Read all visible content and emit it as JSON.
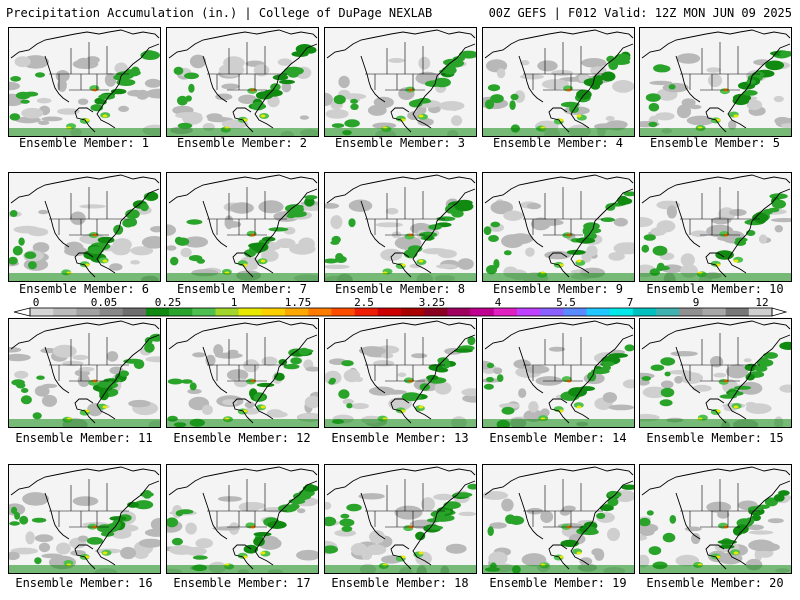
{
  "header": {
    "title": "Precipitation Accumulation (in.) | College of DuPage NEXLAB",
    "run_info": "00Z GEFS | F012 Valid: 12Z MON JUN 09 2025"
  },
  "members": [
    {
      "label": "Ensemble Member: 1"
    },
    {
      "label": "Ensemble Member: 2"
    },
    {
      "label": "Ensemble Member: 3"
    },
    {
      "label": "Ensemble Member: 4"
    },
    {
      "label": "Ensemble Member: 5"
    },
    {
      "label": "Ensemble Member: 6"
    },
    {
      "label": "Ensemble Member: 7"
    },
    {
      "label": "Ensemble Member: 8"
    },
    {
      "label": "Ensemble Member: 9"
    },
    {
      "label": "Ensemble Member: 10"
    },
    {
      "label": "Ensemble Member: 11"
    },
    {
      "label": "Ensemble Member: 12"
    },
    {
      "label": "Ensemble Member: 13"
    },
    {
      "label": "Ensemble Member: 14"
    },
    {
      "label": "Ensemble Member: 15"
    },
    {
      "label": "Ensemble Member: 16"
    },
    {
      "label": "Ensemble Member: 17"
    },
    {
      "label": "Ensemble Member: 18"
    },
    {
      "label": "Ensemble Member: 19"
    },
    {
      "label": "Ensemble Member: 20"
    }
  ],
  "colorbar": {
    "tick_labels": [
      "0",
      "0.05",
      "0.25",
      "1",
      "1.75",
      "2.5",
      "3.25",
      "4",
      "5.5",
      "7",
      "9",
      "12"
    ],
    "colors": [
      "#d6d6d6",
      "#bcbcbc",
      "#a2a2a2",
      "#888888",
      "#6e6e6e",
      "#118a11",
      "#2aa32a",
      "#4fc04f",
      "#a3d62a",
      "#e8e800",
      "#ffd000",
      "#ffa800",
      "#ff7c00",
      "#ff4c00",
      "#ee1c00",
      "#cc0000",
      "#aa0000",
      "#8a0020",
      "#a00060",
      "#c00090",
      "#e020c0",
      "#c040ff",
      "#8a60ff",
      "#5a8aff",
      "#20c8ff",
      "#00e8e8",
      "#00c0c0",
      "#40b0b0",
      "#909090",
      "#a8a8a8",
      "#787878",
      "#d0d0d0"
    ]
  }
}
